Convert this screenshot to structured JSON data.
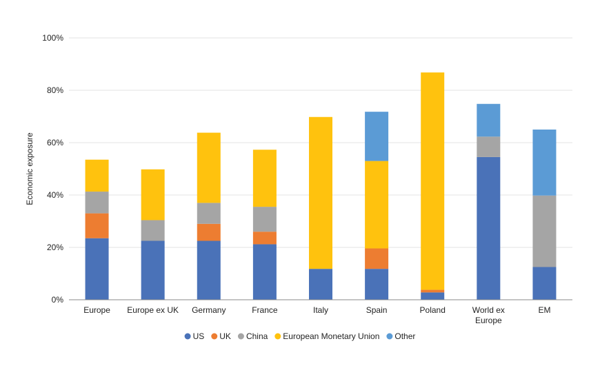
{
  "chart_data": {
    "type": "bar",
    "stacked": true,
    "title": "",
    "xlabel": "",
    "ylabel": "Economic exposure",
    "ylim": [
      0,
      100
    ],
    "yticks": [
      "0%",
      "20%",
      "40%",
      "60%",
      "80%",
      "100%"
    ],
    "categories": [
      "Europe",
      "Europe ex UK",
      "Germany",
      "France",
      "Italy",
      "Spain",
      "Poland",
      "World ex Europe",
      "EM"
    ],
    "category_lines": [
      [
        "Europe"
      ],
      [
        "Europe ex UK"
      ],
      [
        "Germany"
      ],
      [
        "France"
      ],
      [
        "Italy"
      ],
      [
        "Spain"
      ],
      [
        "Poland"
      ],
      [
        "World ex",
        "Europe"
      ],
      [
        "EM"
      ]
    ],
    "series": [
      {
        "name": "US",
        "color": "#4a72b8",
        "values": [
          23.5,
          22.5,
          22.5,
          21.2,
          11.8,
          11.8,
          2.8,
          54.5,
          12.5
        ]
      },
      {
        "name": "UK",
        "color": "#ed7d31",
        "values": [
          9.5,
          0,
          6.5,
          4.8,
          0,
          7.8,
          1.0,
          0,
          0
        ]
      },
      {
        "name": "China",
        "color": "#a5a5a5",
        "values": [
          8.3,
          7.9,
          8.0,
          9.5,
          0,
          0,
          0,
          7.8,
          27.3
        ]
      },
      {
        "name": "European Monetary Union",
        "color": "#ffc20e",
        "values": [
          12.2,
          19.4,
          26.8,
          21.8,
          58.0,
          33.4,
          83.0,
          0,
          0
        ]
      },
      {
        "name": "Other",
        "color": "#5b9bd5",
        "values": [
          0,
          0,
          0,
          0,
          0,
          18.8,
          0,
          12.5,
          25.2
        ]
      }
    ],
    "grid": true,
    "legend_position": "bottom"
  }
}
